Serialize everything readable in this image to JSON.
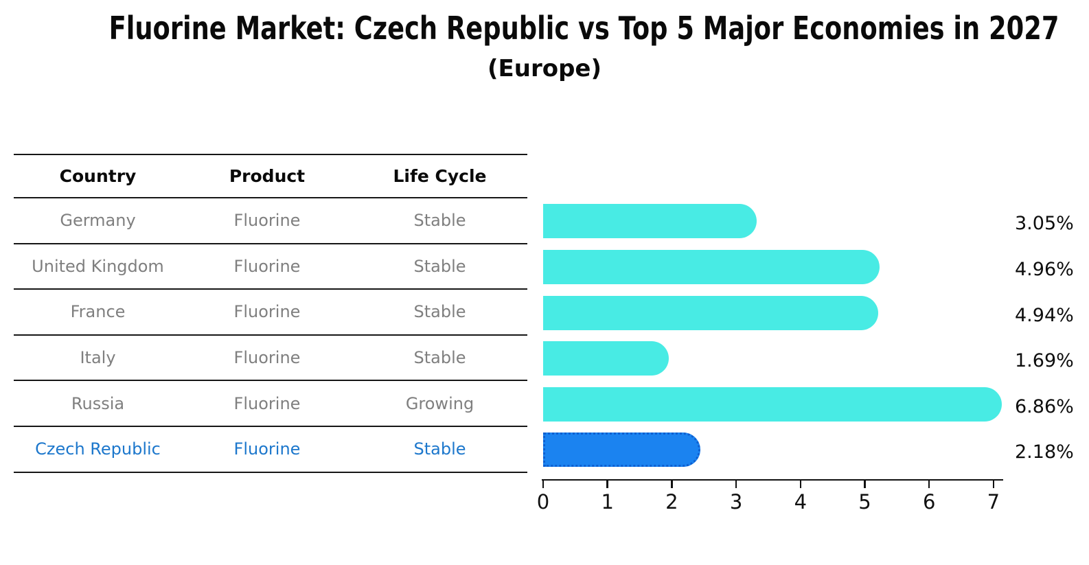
{
  "title": "Fluorine Market: Czech Republic vs Top 5 Major Economies in 2027",
  "subtitle": "(Europe)",
  "table": {
    "headers": [
      "Country",
      "Product",
      "Life Cycle"
    ],
    "rows": [
      {
        "country": "Germany",
        "product": "Fluorine",
        "life_cycle": "Stable",
        "highlighted": false
      },
      {
        "country": "United Kingdom",
        "product": "Fluorine",
        "life_cycle": "Stable",
        "highlighted": false
      },
      {
        "country": "France",
        "product": "Fluorine",
        "life_cycle": "Stable",
        "highlighted": false
      },
      {
        "country": "Italy",
        "product": "Fluorine",
        "life_cycle": "Stable",
        "highlighted": false
      },
      {
        "country": "Russia",
        "product": "Fluorine",
        "life_cycle": "Growing",
        "highlighted": false
      },
      {
        "country": "Czech Republic",
        "product": "Fluorine",
        "life_cycle": "Stable",
        "highlighted": true
      }
    ]
  },
  "chart_data": {
    "type": "bar",
    "orientation": "horizontal",
    "title": "Fluorine Market: Czech Republic vs Top 5 Major Economies in 2027",
    "subtitle": "(Europe)",
    "categories": [
      "Germany",
      "United Kingdom",
      "France",
      "Italy",
      "Russia",
      "Czech Republic"
    ],
    "values": [
      3.05,
      4.96,
      4.94,
      1.69,
      6.86,
      2.18
    ],
    "value_labels": [
      "3.05%",
      "4.96%",
      "4.94%",
      "1.69%",
      "6.86%",
      "2.18%"
    ],
    "x_ticks": [
      0,
      1,
      2,
      3,
      4,
      5,
      6,
      7
    ],
    "xlim": [
      0,
      7.2
    ],
    "grid": false,
    "legend": "none",
    "highlight_index": 5
  },
  "colors": {
    "bar": "#48EBE4",
    "highlight_bar": "#1B83F0",
    "highlight_border": "#0E5FD0",
    "highlight_text": "#1C77CC",
    "row_text": "#7f7f7f",
    "text": "#0d0d0d"
  }
}
